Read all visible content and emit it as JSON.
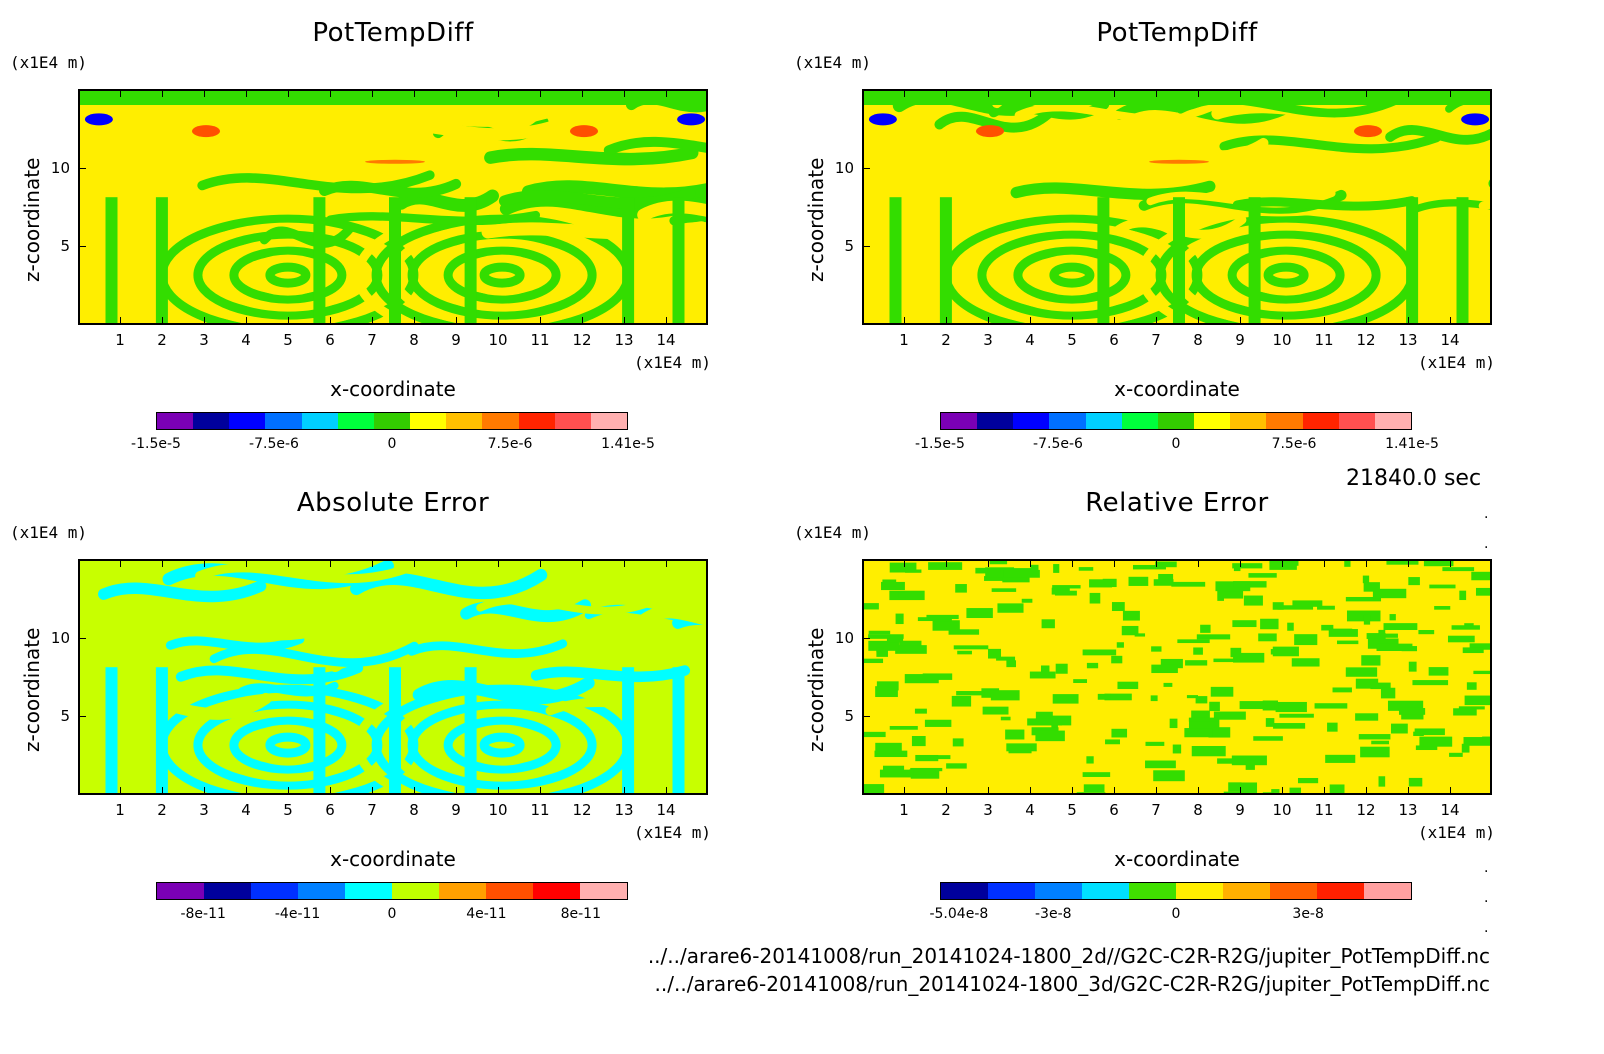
{
  "time_label": "21840.0 sec",
  "file_paths": [
    "../../arare6-20141008/run_20141024-1800_2d//G2C-C2R-R2G/jupiter_PotTempDiff.nc",
    "../../arare6-20141008/run_20141024-1800_3d/G2C-C2R-R2G/jupiter_PotTempDiff.nc"
  ],
  "chart_data": [
    {
      "type": "heatmap",
      "title": "PotTempDiff",
      "xlabel": "x-coordinate",
      "ylabel": "z-coordinate",
      "x_unit": "(x1E4 m)",
      "y_unit": "(x1E4 m)",
      "xlim": [
        0,
        15
      ],
      "ylim": [
        0,
        15
      ],
      "x_ticks": [
        "1",
        "2",
        "3",
        "4",
        "5",
        "6",
        "7",
        "8",
        "9",
        "10",
        "11",
        "12",
        "13",
        "14"
      ],
      "y_ticks": [
        "5",
        "10"
      ],
      "pattern": "swirl",
      "colorbar_colors": [
        "#7b00b5",
        "#00009c",
        "#0000ff",
        "#0070ff",
        "#00d0ff",
        "#00ff3c",
        "#33cc00",
        "#ffff00",
        "#ffc000",
        "#ff7a00",
        "#ff2400",
        "#ff5050",
        "#ffb0b0"
      ],
      "colorbar_labels": [
        "-1.5e-5",
        "-7.5e-6",
        "0",
        "7.5e-6",
        "1.41e-5"
      ],
      "colorbar_label_pos": [
        0.0,
        0.25,
        0.5,
        0.75,
        1.0
      ],
      "dominant_colors": [
        "#33dd00",
        "#ffee00"
      ]
    },
    {
      "type": "heatmap",
      "title": "PotTempDiff",
      "xlabel": "x-coordinate",
      "ylabel": "z-coordinate",
      "x_unit": "(x1E4 m)",
      "y_unit": "(x1E4 m)",
      "xlim": [
        0,
        15
      ],
      "ylim": [
        0,
        15
      ],
      "x_ticks": [
        "1",
        "2",
        "3",
        "4",
        "5",
        "6",
        "7",
        "8",
        "9",
        "10",
        "11",
        "12",
        "13",
        "14"
      ],
      "y_ticks": [
        "5",
        "10"
      ],
      "pattern": "swirl",
      "colorbar_colors": [
        "#7b00b5",
        "#00009c",
        "#0000ff",
        "#0070ff",
        "#00d0ff",
        "#00ff3c",
        "#33cc00",
        "#ffff00",
        "#ffc000",
        "#ff7a00",
        "#ff2400",
        "#ff5050",
        "#ffb0b0"
      ],
      "colorbar_labels": [
        "-1.5e-5",
        "-7.5e-6",
        "0",
        "7.5e-6",
        "1.41e-5"
      ],
      "colorbar_label_pos": [
        0.0,
        0.25,
        0.5,
        0.75,
        1.0
      ],
      "dominant_colors": [
        "#33dd00",
        "#ffee00"
      ]
    },
    {
      "type": "heatmap",
      "title": "Absolute Error",
      "xlabel": "x-coordinate",
      "ylabel": "z-coordinate",
      "x_unit": "(x1E4 m)",
      "y_unit": "(x1E4 m)",
      "xlim": [
        0,
        15
      ],
      "ylim": [
        0,
        15
      ],
      "x_ticks": [
        "1",
        "2",
        "3",
        "4",
        "5",
        "6",
        "7",
        "8",
        "9",
        "10",
        "11",
        "12",
        "13",
        "14"
      ],
      "y_ticks": [
        "5",
        "10"
      ],
      "pattern": "swirl",
      "colorbar_colors": [
        "#7b00b5",
        "#00009c",
        "#0030ff",
        "#0080ff",
        "#00ffff",
        "#c0ff00",
        "#ffa000",
        "#ff5000",
        "#ff0000",
        "#ffb0b0"
      ],
      "colorbar_labels": [
        "-8e-11",
        "-4e-11",
        "0",
        "4e-11",
        "8e-11"
      ],
      "colorbar_label_pos": [
        0.1,
        0.3,
        0.5,
        0.7,
        0.9
      ],
      "dominant_colors": [
        "#00ffff",
        "#c8ff00"
      ]
    },
    {
      "type": "heatmap",
      "title": "Relative Error",
      "xlabel": "x-coordinate",
      "ylabel": "z-coordinate",
      "x_unit": "(x1E4 m)",
      "y_unit": "(x1E4 m)",
      "xlim": [
        0,
        15
      ],
      "ylim": [
        0,
        15
      ],
      "x_ticks": [
        "1",
        "2",
        "3",
        "4",
        "5",
        "6",
        "7",
        "8",
        "9",
        "10",
        "11",
        "12",
        "13",
        "14"
      ],
      "y_ticks": [
        "5",
        "10"
      ],
      "pattern": "noise",
      "colorbar_colors": [
        "#00009c",
        "#0030ff",
        "#0080ff",
        "#00e0ff",
        "#40e000",
        "#ffee00",
        "#ffb000",
        "#ff6000",
        "#ff2000",
        "#ffa0a0"
      ],
      "colorbar_labels": [
        "-5.04e-8",
        "-3e-8",
        "0",
        "3e-8"
      ],
      "colorbar_label_pos": [
        0.04,
        0.24,
        0.5,
        0.78
      ],
      "dominant_colors": [
        "#33dd00",
        "#ffee00"
      ]
    }
  ]
}
